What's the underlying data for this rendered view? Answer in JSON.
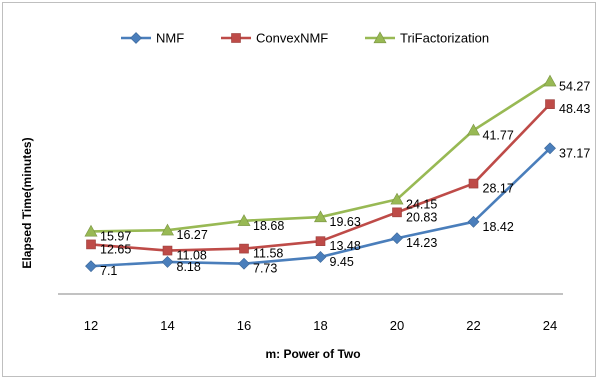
{
  "chart_data": {
    "type": "line",
    "title": "",
    "xlabel": "m: Power of Two",
    "ylabel": "Elapsed Time(minutes)",
    "x": [
      12,
      14,
      16,
      18,
      20,
      22,
      24
    ],
    "ylim": [
      0,
      60
    ],
    "grid": false,
    "legend": "top",
    "series": [
      {
        "name": "NMF",
        "color": "#4a7ebb",
        "marker": "diamond",
        "values": [
          7.1,
          8.18,
          7.73,
          9.45,
          14.23,
          18.42,
          37.17
        ]
      },
      {
        "name": "ConvexNMF",
        "color": "#be4b48",
        "marker": "square",
        "values": [
          12.65,
          11.08,
          11.58,
          13.48,
          20.83,
          28.17,
          48.43
        ]
      },
      {
        "name": "TriFactorization",
        "color": "#98b954",
        "marker": "triangle",
        "values": [
          15.97,
          16.27,
          18.68,
          19.63,
          24.15,
          41.77,
          54.27
        ]
      }
    ],
    "value_labels": [
      [
        "7.1",
        "8.18",
        "7.73",
        "9.45",
        "14.23",
        "18.42",
        "37.17"
      ],
      [
        "12.65",
        "11.08",
        "11.58",
        "13.48",
        "20.83",
        "28.17",
        "48.43"
      ],
      [
        "15.97",
        "16.27",
        "18.68",
        "19.63",
        "24.15",
        "41.77",
        "54.27"
      ]
    ]
  }
}
